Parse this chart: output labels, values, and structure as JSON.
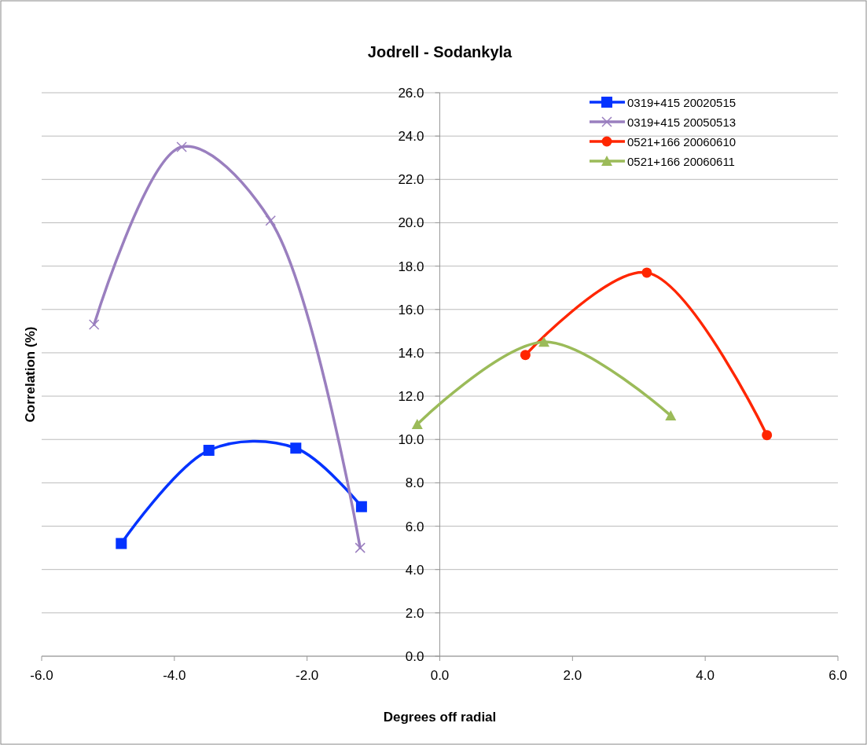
{
  "chart_data": {
    "type": "line",
    "title": "Jodrell - Sodankyla",
    "xlabel": "Degrees off radial",
    "ylabel": "Correlation (%)",
    "xlim": [
      -6,
      6
    ],
    "xticks": [
      {
        "value": -6,
        "label": "-6.0"
      },
      {
        "value": -4,
        "label": "-4.0"
      },
      {
        "value": -2,
        "label": "-2.0"
      },
      {
        "value": 0,
        "label": "0.0"
      },
      {
        "value": 2,
        "label": "2.0"
      },
      {
        "value": 4,
        "label": "4.0"
      },
      {
        "value": 6,
        "label": "6.0"
      }
    ],
    "ylim": [
      0,
      26
    ],
    "yticks": [
      {
        "value": 0,
        "label": "0.0"
      },
      {
        "value": 2,
        "label": "2.0"
      },
      {
        "value": 4,
        "label": "4.0"
      },
      {
        "value": 6,
        "label": "6.0"
      },
      {
        "value": 8,
        "label": "8.0"
      },
      {
        "value": 10,
        "label": "10.0"
      },
      {
        "value": 12,
        "label": "12.0"
      },
      {
        "value": 14,
        "label": "14.0"
      },
      {
        "value": 16,
        "label": "16.0"
      },
      {
        "value": 18,
        "label": "18.0"
      },
      {
        "value": 20,
        "label": "20.0"
      },
      {
        "value": 22,
        "label": "22.0"
      },
      {
        "value": 24,
        "label": "24.0"
      },
      {
        "value": 26,
        "label": "26.0"
      }
    ],
    "grid": "y",
    "legend": "top right",
    "series": [
      {
        "name": "0319+415 20020515",
        "color": "#0433ff",
        "marker": "square",
        "x": [
          -4.8,
          -3.48,
          -2.17,
          -1.18
        ],
        "values": [
          5.2,
          9.5,
          9.6,
          6.9
        ]
      },
      {
        "name": "0319+415 20050513",
        "color": "#9a7fbf",
        "marker": "cross",
        "x": [
          -5.21,
          -3.89,
          -2.55,
          -1.2
        ],
        "values": [
          15.3,
          23.5,
          20.1,
          5.0
        ]
      },
      {
        "name": "0521+166 20060610",
        "color": "#ff2600",
        "marker": "circle",
        "x": [
          1.29,
          3.12,
          4.93
        ],
        "values": [
          13.9,
          17.7,
          10.2
        ]
      },
      {
        "name": "0521+166 20060611",
        "color": "#9bbb59",
        "marker": "triangle",
        "x": [
          -0.34,
          1.57,
          3.48
        ],
        "values": [
          10.7,
          14.5,
          11.1
        ]
      }
    ]
  }
}
